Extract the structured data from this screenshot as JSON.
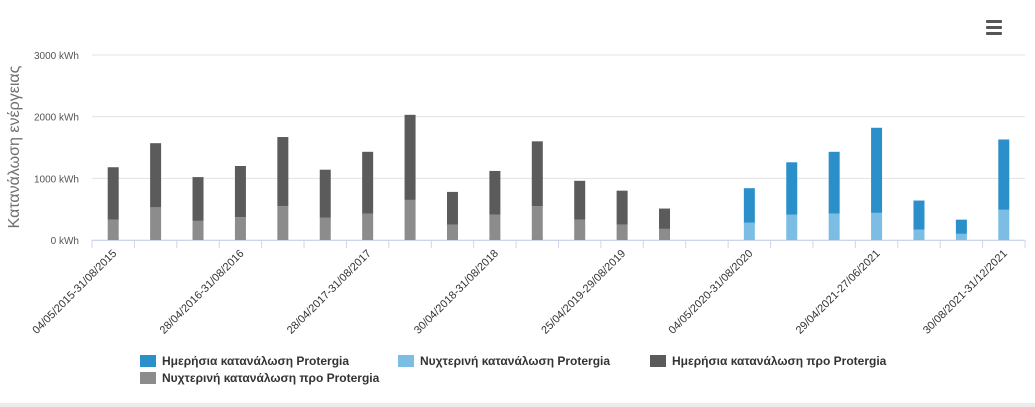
{
  "chart_data": {
    "type": "bar",
    "stacked": true,
    "ylabel": "Κατανάλωση ενέργειας",
    "yunit": "kWh",
    "ylim": [
      0,
      3000
    ],
    "yticks": [
      0,
      1000,
      2000,
      3000
    ],
    "ytick_labels": [
      "0 kWh",
      "1000 kWh",
      "2000 kWh",
      "3000 kWh"
    ],
    "grid": true,
    "legend_position": "bottom",
    "categories": [
      "04/05/2015-31/08/2015",
      "",
      "",
      "28/04/2016-31/08/2016",
      "",
      "",
      "28/04/2017-31/08/2017",
      "",
      "",
      "30/04/2018-31/08/2018",
      "",
      "",
      "25/04/2019-29/08/2019",
      "",
      "",
      "04/05/2020-31/08/2020",
      "",
      "",
      "29/04/2021-27/06/2021",
      "",
      "",
      "30/08/2021-31/12/2021"
    ],
    "series": [
      {
        "name": "Ημερήσια κατανάλωση Protergia",
        "color": "#2b90c9",
        "values": [
          0,
          0,
          0,
          0,
          0,
          0,
          0,
          0,
          0,
          0,
          0,
          0,
          0,
          0,
          0,
          560,
          850,
          1000,
          1380,
          470,
          230,
          1140
        ]
      },
      {
        "name": "Νυχτερινή κατανάλωση Protergia",
        "color": "#7bbde3",
        "values": [
          0,
          0,
          0,
          0,
          0,
          0,
          0,
          0,
          0,
          0,
          0,
          0,
          0,
          0,
          0,
          280,
          410,
          430,
          440,
          170,
          100,
          490
        ]
      },
      {
        "name": "Ημερήσια κατανάλωση προ Protergia",
        "color": "#5b5b5b",
        "values": [
          850,
          1040,
          710,
          830,
          1120,
          780,
          1000,
          1380,
          530,
          710,
          1050,
          630,
          550,
          330,
          0,
          0,
          0,
          0,
          0,
          0,
          0,
          0
        ]
      },
      {
        "name": "Νυχτερινή κατανάλωση προ Protergia",
        "color": "#8c8c8c",
        "values": [
          330,
          530,
          310,
          370,
          550,
          360,
          430,
          650,
          250,
          410,
          550,
          330,
          250,
          180,
          0,
          0,
          0,
          0,
          0,
          0,
          0,
          0
        ]
      }
    ]
  },
  "menu_icon": "hamburger-menu-icon"
}
